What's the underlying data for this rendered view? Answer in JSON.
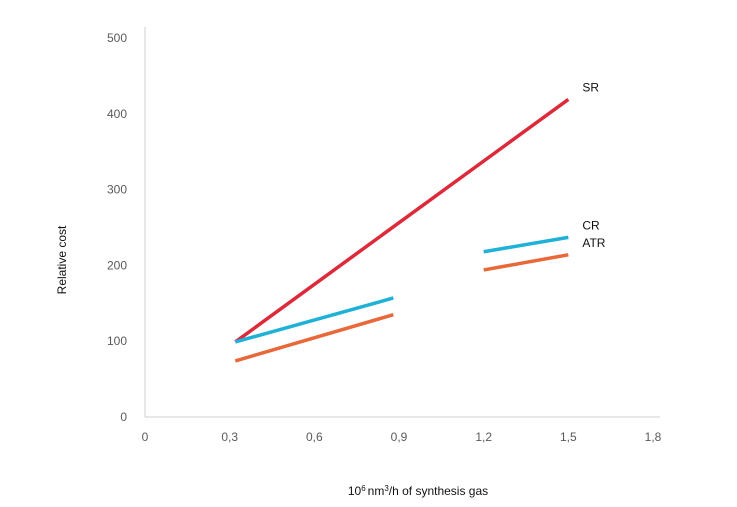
{
  "chart_data": {
    "type": "line",
    "ylabel": "Relative cost",
    "xlabel": {
      "base": "10",
      "base_sup": "6",
      "unit": "nm",
      "unit_sup": "3",
      "rest": "/h of synthesis gas"
    },
    "xlim": [
      0,
      1.8
    ],
    "ylim": [
      0,
      500
    ],
    "x_ticks": [
      "0",
      "0,3",
      "0,6",
      "0,9",
      "1,2",
      "1,5",
      "1,8"
    ],
    "x_tick_values": [
      0,
      0.3,
      0.6,
      0.9,
      1.2,
      1.5,
      1.8
    ],
    "y_ticks": [
      "0",
      "100",
      "200",
      "300",
      "400",
      "500"
    ],
    "y_tick_values": [
      0,
      100,
      200,
      300,
      400,
      500
    ],
    "grid": false,
    "series": [
      {
        "name": "SR",
        "color": "#dc2a3a",
        "segments": [
          [
            [
              0.32,
              99
            ],
            [
              1.5,
              419
            ]
          ]
        ]
      },
      {
        "name": "CR",
        "color": "#1fb1d8",
        "segments": [
          [
            [
              0.32,
              99
            ],
            [
              0.88,
              157
            ]
          ],
          [
            [
              1.2,
              218
            ],
            [
              1.5,
              237
            ]
          ]
        ]
      },
      {
        "name": "ATR",
        "color": "#e8683a",
        "segments": [
          [
            [
              0.32,
              74
            ],
            [
              0.88,
              135
            ]
          ],
          [
            [
              1.2,
              194
            ],
            [
              1.5,
              214
            ]
          ]
        ]
      }
    ]
  }
}
